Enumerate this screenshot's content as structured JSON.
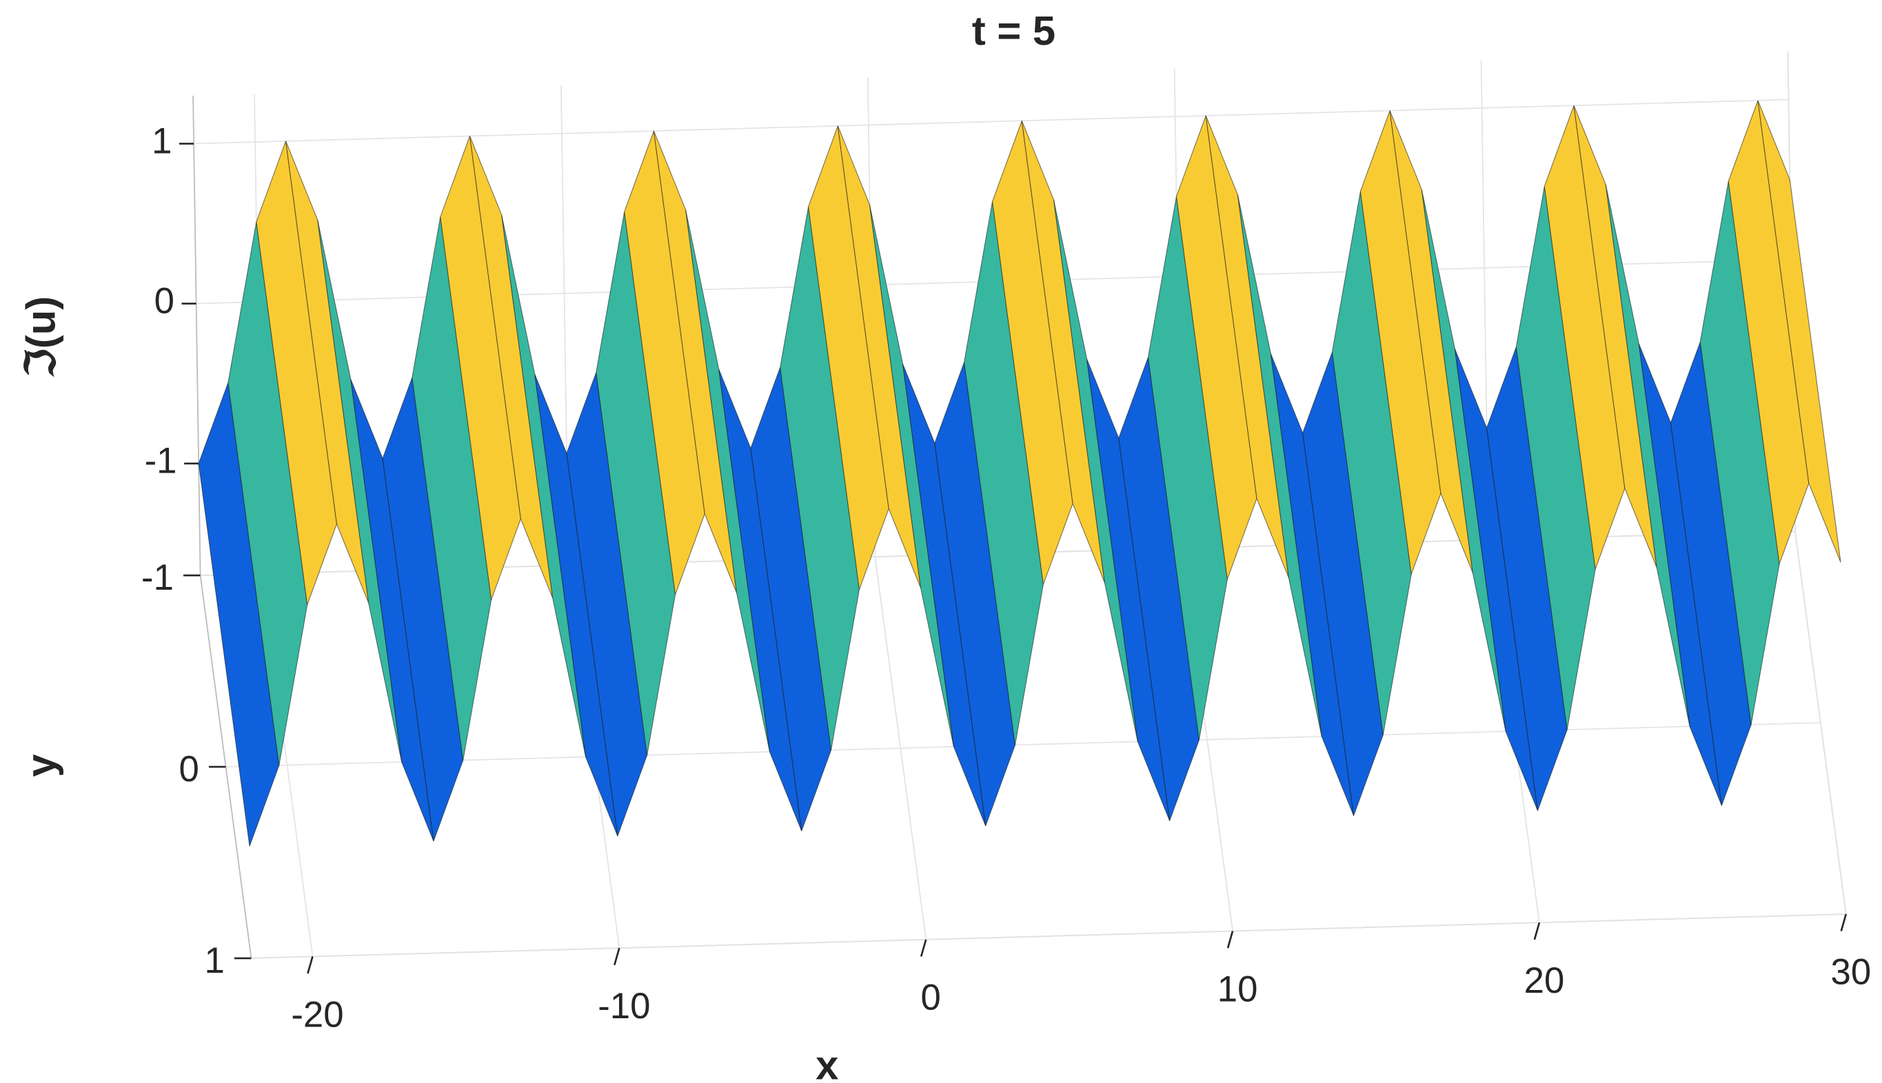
{
  "chart_data": {
    "type": "surface",
    "title": "t = 5",
    "xlabel": "x",
    "ylabel": "y",
    "zlabel": "ℑ(u)",
    "colormap": "parula",
    "x": [
      -22,
      -21,
      -20,
      -19,
      -18,
      -17,
      -16,
      -15,
      -14,
      -13,
      -12,
      -11,
      -10,
      -9,
      -8,
      -7,
      -6,
      -5,
      -4,
      -3,
      -2,
      -1,
      0,
      1,
      2,
      3,
      4,
      5,
      6,
      7,
      8,
      9,
      10,
      11,
      12,
      13,
      14,
      15,
      16,
      17,
      18,
      19,
      20,
      21,
      22,
      23,
      24,
      25,
      26,
      27,
      28,
      29,
      30
    ],
    "z": [
      -1,
      -0.5,
      0.5,
      1,
      0.5,
      -0.5,
      -1,
      -0.5,
      0.5,
      1,
      0.5,
      -0.5,
      -1,
      -0.5,
      0.5,
      1,
      0.5,
      -0.5,
      -1,
      -0.5,
      0.5,
      1,
      0.5,
      -0.5,
      -1,
      -0.5,
      0.5,
      1,
      0.5,
      -0.5,
      -1,
      -0.5,
      0.5,
      1,
      0.5,
      -0.5,
      -1,
      -0.5,
      0.5,
      1,
      0.5,
      -0.5,
      -1,
      -0.5,
      0.5,
      1,
      0.5,
      -0.5,
      -1,
      -0.5,
      0.5,
      1,
      0.5
    ],
    "xlim": [
      -22,
      30
    ],
    "ylim": [
      -1,
      1
    ],
    "zlim": [
      -1.7,
      1.3
    ],
    "xticks": [
      -20,
      -10,
      0,
      10,
      20,
      30
    ],
    "yticks": [
      -1,
      0,
      1
    ],
    "zticks": [
      -1,
      0,
      1
    ],
    "grid": true
  }
}
